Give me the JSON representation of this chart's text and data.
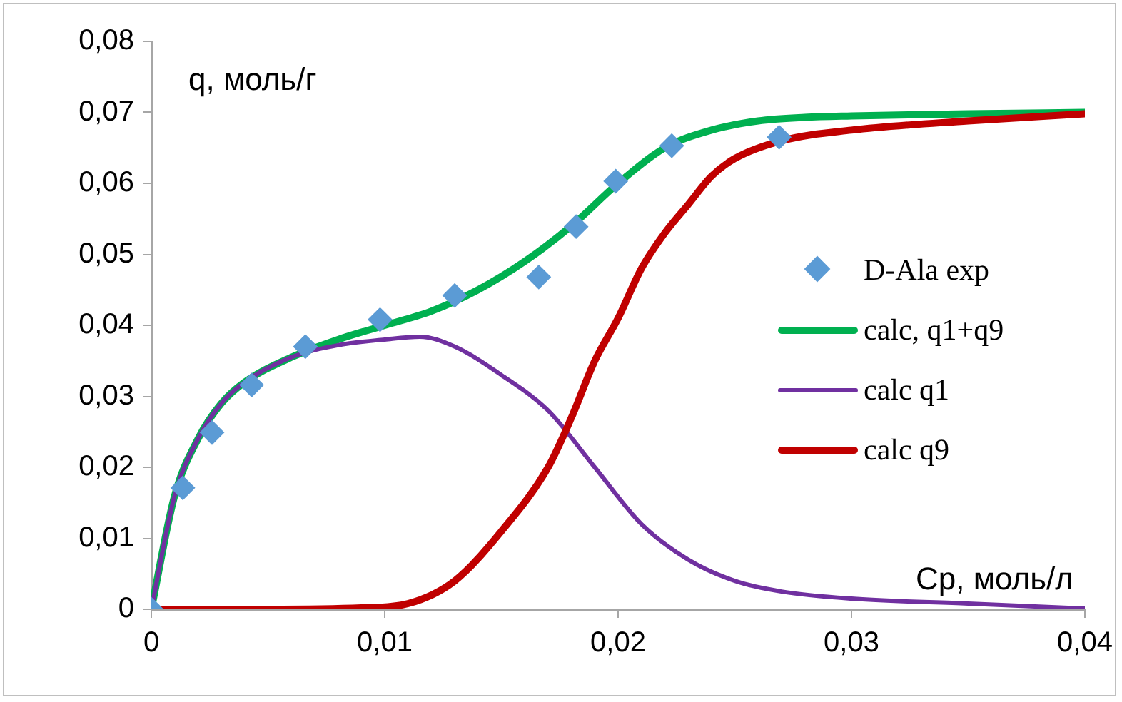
{
  "chart_data": {
    "type": "line",
    "xlabel": "Ср, моль/л",
    "ylabel": "q, моль/г",
    "xlim": [
      0,
      0.04
    ],
    "ylim": [
      0,
      0.08
    ],
    "xticks": [
      0,
      {
        "value": 0.01,
        "label": "0,01"
      },
      {
        "value": 0.02,
        "label": "0,02"
      },
      {
        "value": 0.03,
        "label": "0,03"
      },
      {
        "value": 0.04,
        "label": "0,04"
      }
    ],
    "yticks": [
      0,
      {
        "value": 0.01,
        "label": "0,01"
      },
      {
        "value": 0.02,
        "label": "0,02"
      },
      {
        "value": 0.03,
        "label": "0,03"
      },
      {
        "value": 0.04,
        "label": "0,04"
      },
      {
        "value": 0.05,
        "label": "0,05"
      },
      {
        "value": 0.06,
        "label": "0,06"
      },
      {
        "value": 0.07,
        "label": "0,07"
      },
      {
        "value": 0.08,
        "label": "0,08"
      }
    ],
    "grid": false,
    "legend": "right",
    "line_style": "solid",
    "series": [
      {
        "name": "D-Ala exp",
        "type": "scatter",
        "marker": "diamond",
        "color": "#5b9bd5",
        "x": [
          0,
          0.00135,
          0.0026,
          0.0043,
          0.0066,
          0.0098,
          0.013,
          0.0166,
          0.0182,
          0.0199,
          0.0223,
          0.0269
        ],
        "values": [
          0,
          0.0171,
          0.0249,
          0.0316,
          0.037,
          0.0408,
          0.0442,
          0.0468,
          0.0539,
          0.0603,
          0.0653,
          0.0665
        ]
      },
      {
        "name": "calc, q1+q9",
        "marker": "none",
        "color": "#00b050",
        "x": [
          0,
          0.001,
          0.002,
          0.003,
          0.004,
          0.006,
          0.008,
          0.01,
          0.012,
          0.014,
          0.016,
          0.018,
          0.02,
          0.022,
          0.024,
          0.026,
          0.028,
          0.03,
          0.035,
          0.04
        ],
        "values": [
          0,
          0.016,
          0.024,
          0.029,
          0.032,
          0.0355,
          0.038,
          0.04,
          0.042,
          0.045,
          0.049,
          0.054,
          0.06,
          0.065,
          0.0675,
          0.0688,
          0.0693,
          0.0695,
          0.0698,
          0.07
        ]
      },
      {
        "name": "calc q1",
        "marker": "none",
        "color": "#7030a0",
        "x": [
          0,
          0.001,
          0.002,
          0.003,
          0.004,
          0.006,
          0.008,
          0.01,
          0.0115,
          0.013,
          0.015,
          0.017,
          0.019,
          0.021,
          0.023,
          0.025,
          0.027,
          0.03,
          0.035,
          0.04
        ],
        "values": [
          0,
          0.016,
          0.024,
          0.029,
          0.032,
          0.0355,
          0.0372,
          0.038,
          0.0384,
          0.037,
          0.033,
          0.028,
          0.02,
          0.012,
          0.007,
          0.004,
          0.0025,
          0.0015,
          0.0008,
          0.0001
        ]
      },
      {
        "name": "calc q9",
        "marker": "none",
        "color": "#c00000",
        "x": [
          0,
          0.005,
          0.009,
          0.011,
          0.013,
          0.015,
          0.017,
          0.018,
          0.019,
          0.02,
          0.021,
          0.022,
          0.023,
          0.024,
          0.025,
          0.027,
          0.03,
          0.035,
          0.04
        ],
        "values": [
          0,
          0,
          0.0002,
          0.0008,
          0.004,
          0.011,
          0.02,
          0.027,
          0.035,
          0.041,
          0.048,
          0.053,
          0.057,
          0.061,
          0.0635,
          0.066,
          0.0675,
          0.0688,
          0.0698
        ]
      }
    ]
  }
}
